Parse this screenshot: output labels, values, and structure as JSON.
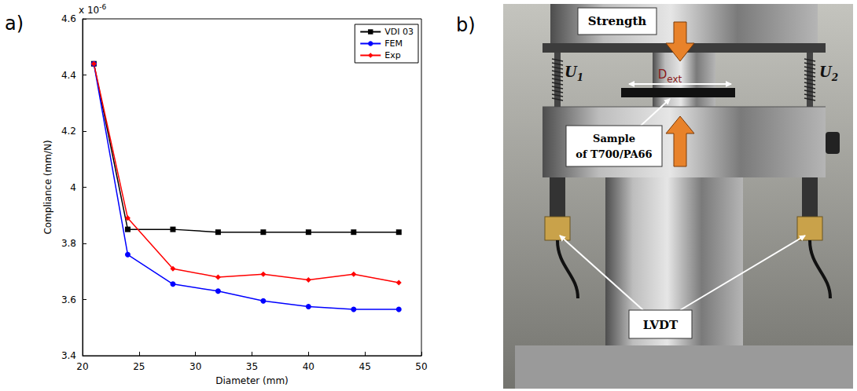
{
  "chart_data": {
    "type": "line",
    "panel_label": "a)",
    "xlabel": "Diameter (mm)",
    "ylabel": "Compliance (mm/N)",
    "y_offset_text": {
      "base": "x 10",
      "exponent": "-6"
    },
    "x": [
      21,
      24,
      28,
      32,
      36,
      40,
      44,
      48
    ],
    "series": [
      {
        "name": "VDI 03",
        "color": "#000000",
        "marker": "square",
        "values": [
          4.44e-06,
          3.85e-06,
          3.85e-06,
          3.84e-06,
          3.84e-06,
          3.84e-06,
          3.84e-06,
          3.84e-06
        ]
      },
      {
        "name": "FEM",
        "color": "#0000ff",
        "marker": "circle",
        "values": [
          4.44e-06,
          3.76e-06,
          3.655e-06,
          3.63e-06,
          3.595e-06,
          3.575e-06,
          3.565e-06,
          3.565e-06
        ]
      },
      {
        "name": "Exp",
        "color": "#ff0000",
        "marker": "diamond",
        "values": [
          4.44e-06,
          3.89e-06,
          3.71e-06,
          3.68e-06,
          3.69e-06,
          3.67e-06,
          3.69e-06,
          3.66e-06
        ]
      }
    ],
    "xlim": [
      20,
      50
    ],
    "xticks": [
      20,
      25,
      30,
      35,
      40,
      45,
      50
    ],
    "ylim": [
      3.4e-06,
      4.6e-06
    ],
    "yticks": [
      {
        "value": 3.4e-06,
        "label": "3.4"
      },
      {
        "value": 3.6e-06,
        "label": "3.6"
      },
      {
        "value": 3.8e-06,
        "label": "3.8"
      },
      {
        "value": 4e-06,
        "label": "4"
      },
      {
        "value": 4.2e-06,
        "label": "4.2"
      },
      {
        "value": 4.4e-06,
        "label": "4.4"
      },
      {
        "value": 4.6e-06,
        "label": "4.6"
      }
    ],
    "grid": false,
    "legend": "upper right"
  },
  "photo": {
    "panel_label": "b)",
    "force_label": "Strength",
    "displacements": [
      {
        "base": "U",
        "sub": "1"
      },
      {
        "base": "U",
        "sub": "2"
      }
    ],
    "diameter": {
      "base": "D",
      "sub": "ext"
    },
    "sample_label": "Sample of T700/PA66",
    "sensor_label": "LVDT"
  }
}
